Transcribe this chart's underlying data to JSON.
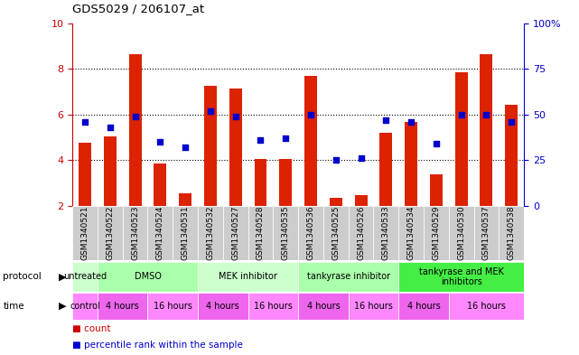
{
  "title": "GDS5029 / 206107_at",
  "samples": [
    "GSM1340521",
    "GSM1340522",
    "GSM1340523",
    "GSM1340524",
    "GSM1340531",
    "GSM1340532",
    "GSM1340527",
    "GSM1340528",
    "GSM1340535",
    "GSM1340536",
    "GSM1340525",
    "GSM1340526",
    "GSM1340533",
    "GSM1340534",
    "GSM1340529",
    "GSM1340530",
    "GSM1340537",
    "GSM1340538"
  ],
  "count_values": [
    4.75,
    5.05,
    8.65,
    3.85,
    2.55,
    7.25,
    7.15,
    4.05,
    4.05,
    7.7,
    2.35,
    2.45,
    5.2,
    5.65,
    3.35,
    7.85,
    8.65,
    6.4
  ],
  "percentile_values": [
    46,
    43,
    49,
    35,
    32,
    52,
    49,
    36,
    37,
    50,
    25,
    26,
    47,
    46,
    34,
    50,
    50,
    46
  ],
  "y_min": 2,
  "y_max": 10,
  "y_ticks": [
    2,
    4,
    6,
    8,
    10
  ],
  "y_right_ticks": [
    0,
    25,
    50,
    75,
    100
  ],
  "bar_color": "#dd2200",
  "dot_color": "#0000cc",
  "bar_bottom": 2,
  "protocols": [
    {
      "label": "untreated",
      "start": 0,
      "end": 1,
      "color": "#ccffcc"
    },
    {
      "label": "DMSO",
      "start": 1,
      "end": 5,
      "color": "#aaffaa"
    },
    {
      "label": "MEK inhibitor",
      "start": 5,
      "end": 9,
      "color": "#ccffcc"
    },
    {
      "label": "tankyrase inhibitor",
      "start": 9,
      "end": 13,
      "color": "#aaffaa"
    },
    {
      "label": "tankyrase and MEK\ninhibitors",
      "start": 13,
      "end": 18,
      "color": "#44ee44"
    }
  ],
  "times": [
    {
      "label": "control",
      "start": 0,
      "end": 1,
      "color": "#ff88ff"
    },
    {
      "label": "4 hours",
      "start": 1,
      "end": 3,
      "color": "#ee66ee"
    },
    {
      "label": "16 hours",
      "start": 3,
      "end": 5,
      "color": "#ff88ff"
    },
    {
      "label": "4 hours",
      "start": 5,
      "end": 7,
      "color": "#ee66ee"
    },
    {
      "label": "16 hours",
      "start": 7,
      "end": 9,
      "color": "#ff88ff"
    },
    {
      "label": "4 hours",
      "start": 9,
      "end": 11,
      "color": "#ee66ee"
    },
    {
      "label": "16 hours",
      "start": 11,
      "end": 13,
      "color": "#ff88ff"
    },
    {
      "label": "4 hours",
      "start": 13,
      "end": 15,
      "color": "#ee66ee"
    },
    {
      "label": "16 hours",
      "start": 15,
      "end": 18,
      "color": "#ff88ff"
    }
  ],
  "legend_count_color": "#cc0000",
  "legend_dot_color": "#0000cc",
  "axis_label_color_left": "#cc0000",
  "axis_label_color_right": "#0000cc",
  "background_color": "#ffffff",
  "grid_color": "#000000",
  "label_row_bg": "#cccccc"
}
